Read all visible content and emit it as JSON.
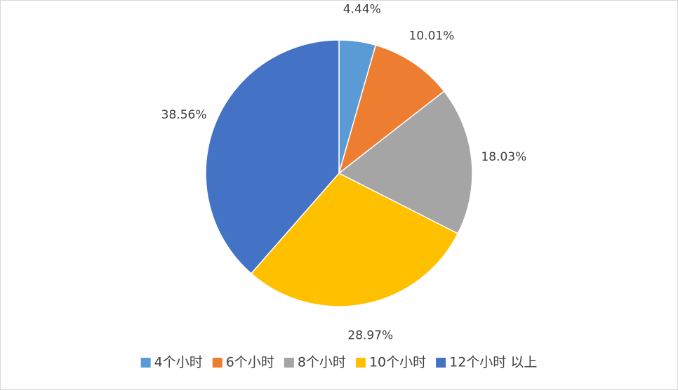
{
  "chart_data": {
    "type": "pie",
    "categories": [
      "4个小时",
      "6个小时",
      "8个小时",
      "10个小时",
      "12个小时 以上"
    ],
    "values": [
      4.44,
      10.01,
      18.03,
      28.97,
      38.56
    ],
    "value_labels": [
      "4.44%",
      "10.01%",
      "18.03%",
      "28.97%",
      "38.56%"
    ],
    "colors": [
      "#5b9bd5",
      "#ed7d31",
      "#a5a5a5",
      "#ffc000",
      "#4472c4"
    ],
    "legend": "bottom"
  }
}
